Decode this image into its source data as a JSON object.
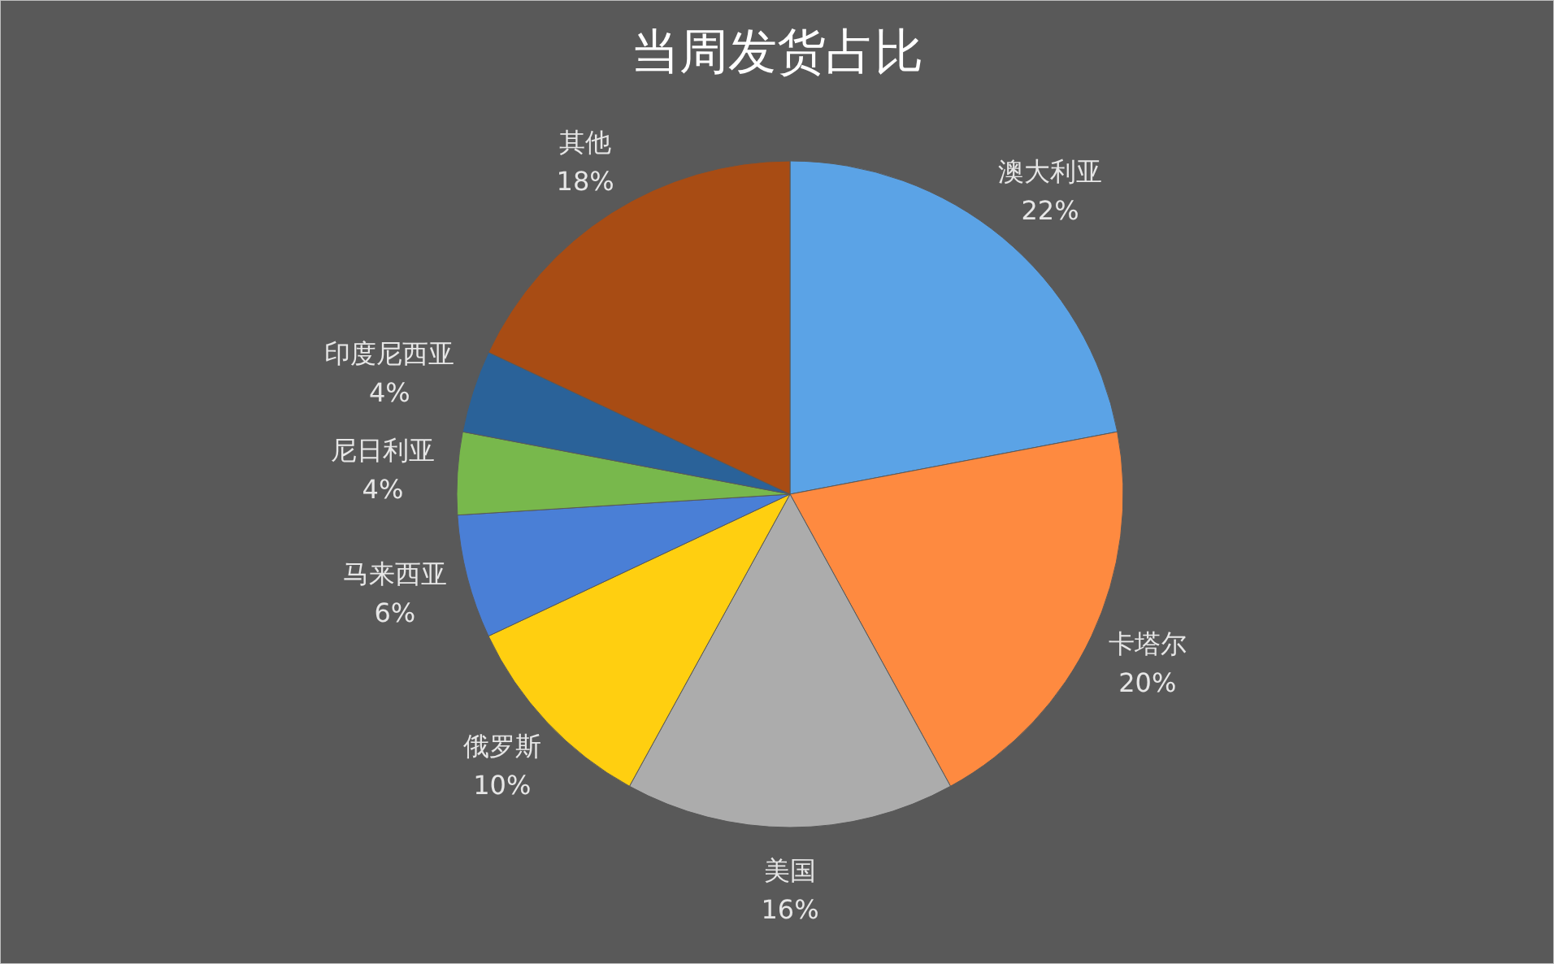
{
  "chart_data": {
    "type": "pie",
    "title": "当周发货占比",
    "categories": [
      "澳大利亚",
      "卡塔尔",
      "美国",
      "俄罗斯",
      "马来西亚",
      "尼日利亚",
      "印度尼西亚",
      "其他"
    ],
    "values": [
      22,
      20,
      16,
      10,
      6,
      4,
      4,
      18
    ],
    "value_labels": [
      "22%",
      "20%",
      "16%",
      "10%",
      "6%",
      "4%",
      "4%",
      "18%"
    ],
    "colors": [
      "#5ba3e6",
      "#fe8a40",
      "#acacac",
      "#ffcf10",
      "#4a7fd6",
      "#78b84c",
      "#2a6299",
      "#a84c14"
    ]
  }
}
